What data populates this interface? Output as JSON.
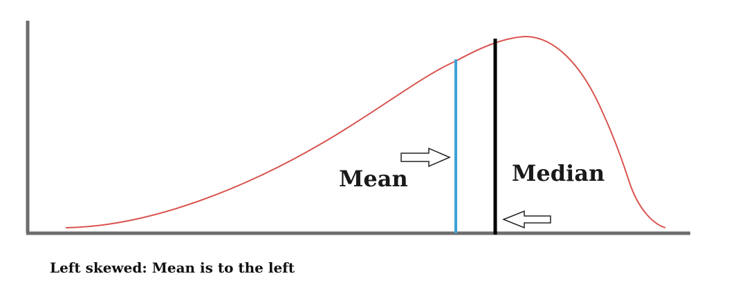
{
  "diagram": {
    "mean_label": "Mean",
    "median_label": "Median",
    "caption": "Left skewed: Mean is to the left",
    "colors": {
      "axis": "#6d6d6d",
      "curve": "#d9534f",
      "mean_line": "#3aa3d6",
      "median_line": "#000000",
      "text": "#1a1a1a"
    },
    "icons": [
      "arrow-right-icon",
      "arrow-left-icon"
    ]
  }
}
